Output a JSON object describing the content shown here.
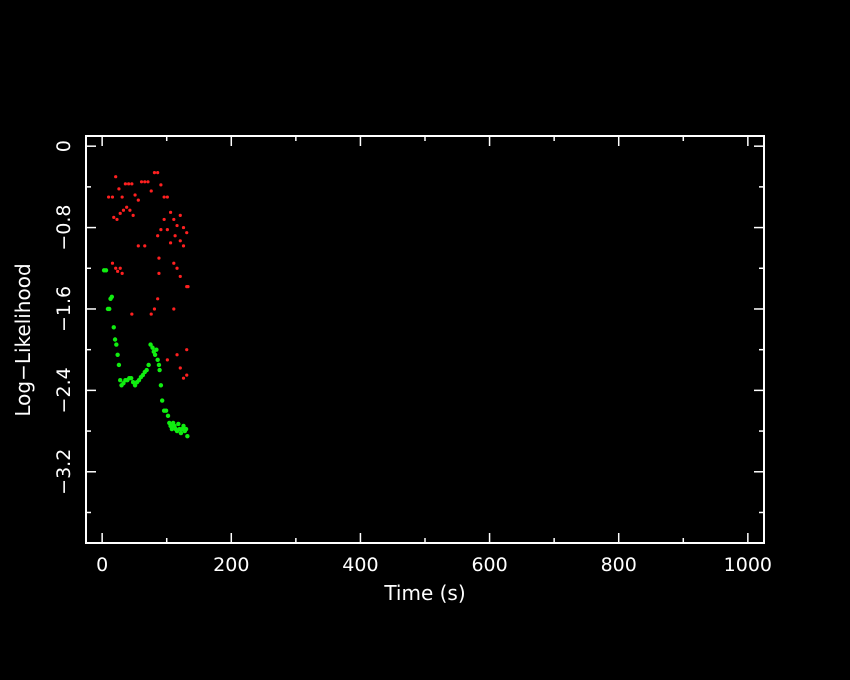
{
  "chart_data": {
    "type": "scatter",
    "title": "",
    "xlabel": "Time (s)",
    "ylabel": "Log−Likelihood",
    "xlim": [
      -25,
      1025
    ],
    "ylim": [
      -3.9,
      0.1
    ],
    "xticks": [
      {
        "value": 0,
        "label": "0"
      },
      {
        "value": 200,
        "label": "200"
      },
      {
        "value": 400,
        "label": "400"
      },
      {
        "value": 600,
        "label": "600"
      },
      {
        "value": 800,
        "label": "800"
      },
      {
        "value": 1000,
        "label": "1000"
      }
    ],
    "yticks": [
      {
        "value": 0,
        "label": "0"
      },
      {
        "value": -0.8,
        "label": "−0.8"
      },
      {
        "value": -1.6,
        "label": "−1.6"
      },
      {
        "value": -2.4,
        "label": "−2.4"
      },
      {
        "value": -3.2,
        "label": "−3.2"
      }
    ],
    "grid": false,
    "background": "#000000",
    "axis_color": "#ffffff",
    "series": [
      {
        "color": "#ff2020",
        "points": [
          [
            10,
            -0.5
          ],
          [
            16,
            -0.5
          ],
          [
            21,
            -0.3
          ],
          [
            26,
            -0.42
          ],
          [
            31,
            -0.5
          ],
          [
            36,
            -0.37
          ],
          [
            41,
            -0.37
          ],
          [
            46,
            -0.37
          ],
          [
            51,
            -0.48
          ],
          [
            56,
            -0.53
          ],
          [
            61,
            -0.35
          ],
          [
            66,
            -0.35
          ],
          [
            71,
            -0.35
          ],
          [
            76,
            -0.44
          ],
          [
            81,
            -0.26
          ],
          [
            86,
            -0.26
          ],
          [
            91,
            -0.38
          ],
          [
            96,
            -0.5
          ],
          [
            101,
            -0.5
          ],
          [
            106,
            -0.65
          ],
          [
            111,
            -0.72
          ],
          [
            116,
            -0.78
          ],
          [
            121,
            -0.68
          ],
          [
            126,
            -0.8
          ],
          [
            131,
            -0.85
          ],
          [
            18,
            -0.7
          ],
          [
            23,
            -0.72
          ],
          [
            28,
            -0.66
          ],
          [
            33,
            -0.63
          ],
          [
            38,
            -0.6
          ],
          [
            43,
            -0.63
          ],
          [
            48,
            -0.68
          ],
          [
            56,
            -0.98
          ],
          [
            66,
            -0.98
          ],
          [
            86,
            -0.88
          ],
          [
            91,
            -0.82
          ],
          [
            96,
            -0.72
          ],
          [
            101,
            -0.82
          ],
          [
            106,
            -0.95
          ],
          [
            113,
            -0.88
          ],
          [
            121,
            -0.93
          ],
          [
            126,
            -0.98
          ],
          [
            16,
            -1.15
          ],
          [
            21,
            -1.2
          ],
          [
            24,
            -1.23
          ],
          [
            28,
            -1.2
          ],
          [
            31,
            -1.25
          ],
          [
            88,
            -1.1
          ],
          [
            88,
            -1.25
          ],
          [
            111,
            -1.15
          ],
          [
            116,
            -1.2
          ],
          [
            121,
            -1.28
          ],
          [
            131,
            -1.38
          ],
          [
            133,
            -1.38
          ],
          [
            86,
            -1.5
          ],
          [
            81,
            -1.6
          ],
          [
            76,
            -1.65
          ],
          [
            46,
            -1.65
          ],
          [
            111,
            -1.6
          ],
          [
            116,
            -2.05
          ],
          [
            101,
            -2.1
          ],
          [
            131,
            -2.0
          ],
          [
            121,
            -2.18
          ],
          [
            126,
            -2.28
          ],
          [
            131,
            -2.25
          ]
        ]
      },
      {
        "color": "#10ee10",
        "points": [
          [
            3,
            -1.22
          ],
          [
            6,
            -1.22
          ],
          [
            9,
            -1.6
          ],
          [
            11,
            -1.6
          ],
          [
            13,
            -1.5
          ],
          [
            15,
            -1.48
          ],
          [
            18,
            -1.78
          ],
          [
            20,
            -1.9
          ],
          [
            22,
            -1.95
          ],
          [
            24,
            -2.05
          ],
          [
            26,
            -2.15
          ],
          [
            28,
            -2.3
          ],
          [
            30,
            -2.35
          ],
          [
            33,
            -2.33
          ],
          [
            36,
            -2.3
          ],
          [
            39,
            -2.3
          ],
          [
            42,
            -2.28
          ],
          [
            45,
            -2.28
          ],
          [
            48,
            -2.32
          ],
          [
            51,
            -2.35
          ],
          [
            54,
            -2.32
          ],
          [
            57,
            -2.3
          ],
          [
            60,
            -2.27
          ],
          [
            63,
            -2.25
          ],
          [
            66,
            -2.22
          ],
          [
            69,
            -2.2
          ],
          [
            72,
            -2.15
          ],
          [
            75,
            -1.95
          ],
          [
            78,
            -1.98
          ],
          [
            80,
            -2.02
          ],
          [
            82,
            -2.05
          ],
          [
            84,
            -2.0
          ],
          [
            86,
            -2.1
          ],
          [
            88,
            -2.15
          ],
          [
            89,
            -2.2
          ],
          [
            91,
            -2.35
          ],
          [
            93,
            -2.5
          ],
          [
            96,
            -2.6
          ],
          [
            99,
            -2.6
          ],
          [
            102,
            -2.65
          ],
          [
            104,
            -2.72
          ],
          [
            106,
            -2.75
          ],
          [
            108,
            -2.78
          ],
          [
            110,
            -2.72
          ],
          [
            112,
            -2.75
          ],
          [
            114,
            -2.78
          ],
          [
            116,
            -2.8
          ],
          [
            118,
            -2.73
          ],
          [
            120,
            -2.78
          ],
          [
            122,
            -2.82
          ],
          [
            124,
            -2.78
          ],
          [
            126,
            -2.75
          ],
          [
            128,
            -2.8
          ],
          [
            130,
            -2.78
          ],
          [
            132,
            -2.85
          ]
        ]
      }
    ]
  }
}
